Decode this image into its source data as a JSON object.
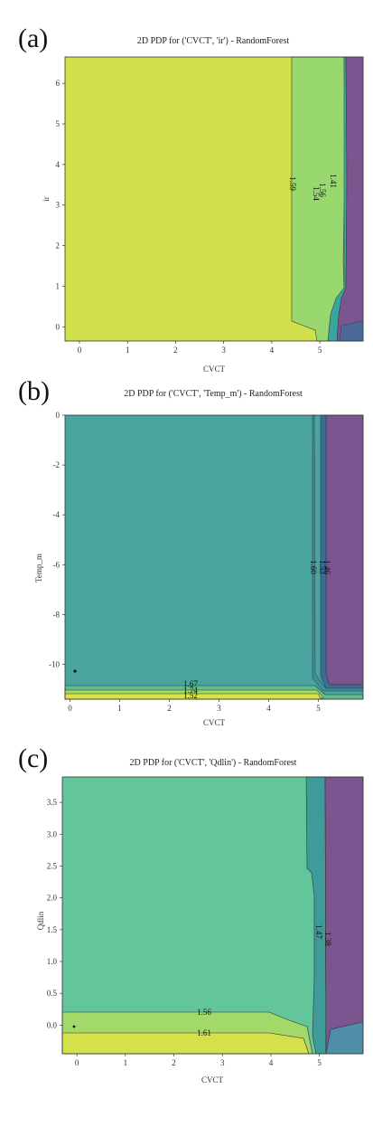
{
  "chart_data": [
    {
      "letter": "(a)",
      "type": "heatmap",
      "subtype": "2d-partial-dependence-contour",
      "title": "2D PDP for ('CVCT', 'ir') - RandomForest",
      "xlabel": "CVCT",
      "ylabel": "ir",
      "xlim": [
        -0.3,
        5.9
      ],
      "ylim": [
        -0.35,
        6.65
      ],
      "xticks": [
        "0",
        "1",
        "2",
        "3",
        "4",
        "5"
      ],
      "yticks": [
        "0",
        "1",
        "2",
        "3",
        "4",
        "5",
        "6"
      ],
      "regions": [
        {
          "color": "#d0e04a",
          "x_range": [
            -0.3,
            4.45
          ]
        },
        {
          "color": "#98d86e",
          "x_range": [
            4.45,
            5.15
          ]
        },
        {
          "color": "#7a5590",
          "x_range": [
            5.15,
            5.9
          ]
        }
      ],
      "contour_labels": [
        {
          "text": "1.59",
          "x": 4.5,
          "y": 3.0
        },
        {
          "text": "1.54",
          "x": 5.0,
          "y": 3.3
        },
        {
          "text": "1.56",
          "x": 5.05,
          "y": 3.1
        },
        {
          "text": "1.41",
          "x": 5.2,
          "y": 3.0
        }
      ]
    },
    {
      "letter": "(b)",
      "type": "heatmap",
      "subtype": "2d-partial-dependence-contour",
      "title": "2D PDP for ('CVCT', 'Temp_m') - RandomForest",
      "xlabel": "CVCT",
      "ylabel": "Temp_m",
      "xlim": [
        -0.1,
        5.9
      ],
      "ylim": [
        -11.4,
        0
      ],
      "xticks": [
        "0",
        "1",
        "2",
        "3",
        "4",
        "5"
      ],
      "yticks": [
        "0",
        "-2",
        "-4",
        "-6",
        "-8",
        "-10"
      ],
      "regions": [
        {
          "color": "#4aa4a0",
          "x_range": [
            -0.1,
            5.0
          ]
        },
        {
          "color": "#7a5590",
          "x_range": [
            5.0,
            5.9
          ]
        }
      ],
      "contour_labels": [
        {
          "text": "1.67",
          "x": 2.3,
          "y": -10.9
        },
        {
          "text": "1.74",
          "x": 2.3,
          "y": -11.05
        },
        {
          "text": "1.52",
          "x": 2.3,
          "y": -11.25
        },
        {
          "text": "1.60",
          "x": 5.0,
          "y": -6.0
        },
        {
          "text": "1.53",
          "x": 5.1,
          "y": -6.0
        },
        {
          "text": "1.46",
          "x": 5.2,
          "y": -6.0
        }
      ]
    },
    {
      "letter": "(c)",
      "type": "heatmap",
      "subtype": "2d-partial-dependence-contour",
      "title": "2D PDP for ('CVCT', 'Qdlin') - RandomForest",
      "xlabel": "CVCT",
      "ylabel": "Qdlin",
      "xlim": [
        -0.3,
        5.9
      ],
      "ylim": [
        -0.45,
        3.9
      ],
      "xticks": [
        "0",
        "1",
        "2",
        "3",
        "4",
        "5"
      ],
      "yticks": [
        "0.0",
        "0.5",
        "1.0",
        "1.5",
        "2.0",
        "2.5",
        "3.0",
        "3.5"
      ],
      "regions": [
        {
          "color": "#62c69a",
          "x_range": [
            -0.3,
            5.0
          ]
        },
        {
          "color": "#7a5590",
          "x_range": [
            5.0,
            5.9
          ]
        }
      ],
      "contour_labels": [
        {
          "text": "1.56",
          "x": 2.3,
          "y": 0.12
        },
        {
          "text": "1.61",
          "x": 2.3,
          "y": -0.17
        },
        {
          "text": "1.47",
          "x": 5.05,
          "y": 1.6
        },
        {
          "text": "1.38",
          "x": 5.2,
          "y": 1.5
        }
      ]
    }
  ]
}
